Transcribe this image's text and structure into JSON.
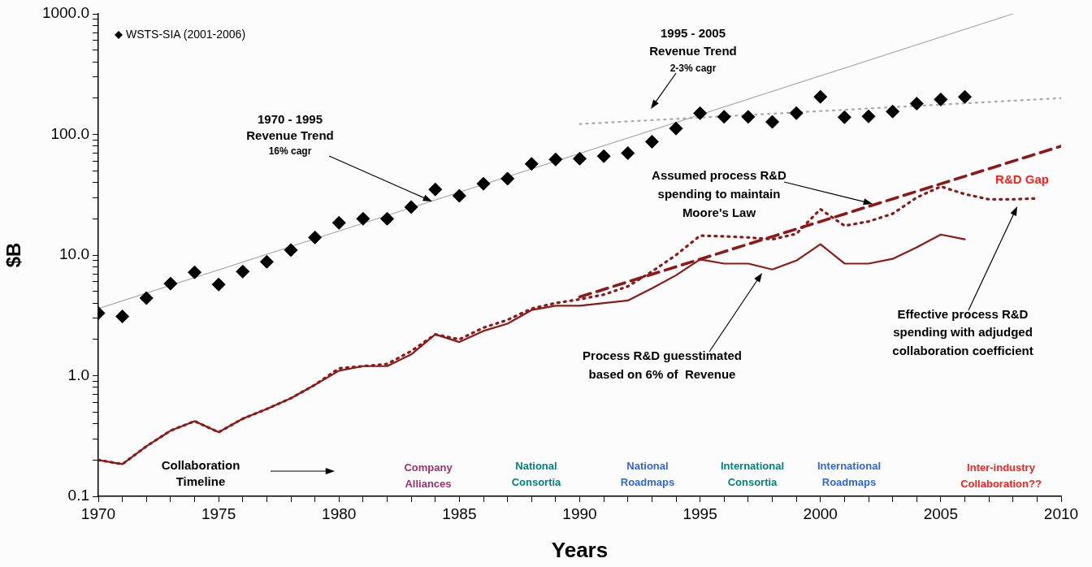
{
  "chart_data": {
    "type": "scatter",
    "xlabel": "Years",
    "ylabel": "$B",
    "log": "y",
    "grid": false,
    "legend": "top left",
    "xlim": [
      1970,
      2010
    ],
    "xticks": [
      1970,
      {
        "value": 1971,
        "label": null
      },
      {
        "value": 1972,
        "label": null
      },
      {
        "value": 1973,
        "label": null
      },
      {
        "value": 1974,
        "label": null
      },
      1975,
      {
        "value": 1976,
        "label": null
      },
      {
        "value": 1977,
        "label": null
      },
      {
        "value": 1978,
        "label": null
      },
      {
        "value": 1979,
        "label": null
      },
      1980,
      {
        "value": 1981,
        "label": null
      },
      {
        "value": 1982,
        "label": null
      },
      {
        "value": 1983,
        "label": null
      },
      {
        "value": 1984,
        "label": null
      },
      1985,
      {
        "value": 1986,
        "label": null
      },
      {
        "value": 1987,
        "label": null
      },
      {
        "value": 1988,
        "label": null
      },
      {
        "value": 1989,
        "label": null
      },
      1990,
      {
        "value": 1991,
        "label": null
      },
      {
        "value": 1992,
        "label": null
      },
      {
        "value": 1993,
        "label": null
      },
      {
        "value": 1994,
        "label": null
      },
      1995,
      {
        "value": 1996,
        "label": null
      },
      {
        "value": 1997,
        "label": null
      },
      {
        "value": 1998,
        "label": null
      },
      {
        "value": 1999,
        "label": null
      },
      2000,
      {
        "value": 2001,
        "label": null
      },
      {
        "value": 2002,
        "label": null
      },
      {
        "value": 2003,
        "label": null
      },
      {
        "value": 2004,
        "label": null
      },
      2005,
      {
        "value": 2006,
        "label": null
      },
      {
        "value": 2007,
        "label": null
      },
      {
        "value": 2008,
        "label": null
      },
      {
        "value": 2009,
        "label": null
      },
      2010
    ],
    "ylim": [
      0.1,
      1000
    ],
    "yticks": [
      0.1,
      {
        "value": 0.2,
        "label": null
      },
      {
        "value": 0.3,
        "label": null
      },
      {
        "value": 0.4,
        "label": null
      },
      {
        "value": 0.5,
        "label": null
      },
      {
        "value": 0.6,
        "label": null
      },
      {
        "value": 0.7,
        "label": null
      },
      {
        "value": 0.8,
        "label": null
      },
      {
        "value": 0.9,
        "label": null
      },
      {
        "value": 1,
        "label": "1.0"
      },
      {
        "value": 2,
        "label": null
      },
      {
        "value": 3,
        "label": null
      },
      {
        "value": 4,
        "label": null
      },
      {
        "value": 5,
        "label": null
      },
      {
        "value": 6,
        "label": null
      },
      {
        "value": 7,
        "label": null
      },
      {
        "value": 8,
        "label": null
      },
      {
        "value": 9,
        "label": null
      },
      {
        "value": 10,
        "label": "10.0"
      },
      {
        "value": 20,
        "label": null
      },
      {
        "value": 30,
        "label": null
      },
      {
        "value": 40,
        "label": null
      },
      {
        "value": 50,
        "label": null
      },
      {
        "value": 60,
        "label": null
      },
      {
        "value": 70,
        "label": null
      },
      {
        "value": 80,
        "label": null
      },
      {
        "value": 90,
        "label": null
      },
      {
        "value": 100,
        "label": "100.0"
      },
      {
        "value": 200,
        "label": null
      },
      {
        "value": 300,
        "label": null
      },
      {
        "value": 400,
        "label": null
      },
      {
        "value": 500,
        "label": null
      },
      {
        "value": 600,
        "label": null
      },
      {
        "value": 700,
        "label": null
      },
      {
        "value": 800,
        "label": null
      },
      {
        "value": 900,
        "label": null
      },
      {
        "value": 1000,
        "label": "1000.0"
      }
    ],
    "series": [
      {
        "type": "line",
        "color": "#a8a8a8",
        "line_style": "solid",
        "x": [
          1970,
          2008
        ],
        "values": [
          3.6,
          1000
        ]
      },
      {
        "type": "line",
        "color": "#a8a8a8",
        "line_style": "dotted",
        "x": [
          1990,
          2010
        ],
        "values": [
          122,
          200
        ]
      },
      {
        "type": "scatter",
        "name": "WSTS-SIA (2001-2006)",
        "color": "#000000",
        "marker": "diamond",
        "x": [
          1970,
          1971,
          1972,
          1973,
          1974,
          1975,
          1976,
          1977,
          1978,
          1979,
          1980,
          1981,
          1982,
          1983,
          1984,
          1985,
          1986,
          1987,
          1988,
          1989,
          1990,
          1991,
          1992,
          1993,
          1994,
          1995,
          1996,
          1997,
          1998,
          1999,
          2000,
          2001,
          2002,
          2003,
          2004,
          2005,
          2006
        ],
        "values": [
          3.3,
          3.1,
          4.4,
          5.8,
          7.2,
          5.7,
          7.3,
          8.8,
          11,
          14,
          18.5,
          20,
          20,
          25,
          35,
          31,
          39,
          43,
          57,
          62,
          63,
          66,
          70,
          87,
          112,
          150,
          140,
          140,
          127,
          150,
          205,
          139,
          141,
          155,
          180,
          195,
          205
        ]
      },
      {
        "type": "line",
        "color": "#8b1a1a",
        "line_style": "dotted",
        "x": [
          1970,
          1971,
          1972,
          1973,
          1974,
          1975,
          1976,
          1977,
          1978,
          1979,
          1980,
          1981,
          1982,
          1983,
          1984,
          1985,
          1986,
          1987,
          1988,
          1989,
          1990,
          1991,
          1992,
          1993,
          1994,
          1995,
          1996,
          1997,
          1998,
          1999,
          2000,
          2001,
          2002,
          2003,
          2004,
          2005,
          2006,
          2007,
          2008,
          2009
        ],
        "values": [
          0.2,
          0.185,
          0.26,
          0.35,
          0.42,
          0.34,
          0.44,
          0.53,
          0.65,
          0.84,
          1.15,
          1.2,
          1.25,
          1.6,
          2.2,
          2,
          2.5,
          2.9,
          3.6,
          4,
          4.3,
          4.7,
          5.5,
          7.3,
          10,
          14.5,
          14.3,
          14,
          13.5,
          15,
          24,
          17.5,
          19,
          22,
          30,
          37,
          32,
          29,
          29,
          29.5
        ]
      },
      {
        "type": "line",
        "color": "#8b1a1a",
        "line_style": "dashed",
        "x": [
          1990,
          2010
        ],
        "values": [
          4.5,
          80
        ]
      },
      {
        "type": "line",
        "color": "#8b1a1a",
        "line_style": "solid",
        "x": [
          1970,
          1971,
          1972,
          1973,
          1974,
          1975,
          1976,
          1977,
          1978,
          1979,
          1980,
          1981,
          1982,
          1983,
          1984,
          1985,
          1986,
          1987,
          1988,
          1989,
          1990,
          1991,
          1992,
          1993,
          1994,
          1995,
          1996,
          1997,
          1998,
          1999,
          2000,
          2001,
          2002,
          2003,
          2004,
          2005,
          2006
        ],
        "values": [
          0.2,
          0.185,
          0.26,
          0.35,
          0.42,
          0.34,
          0.44,
          0.53,
          0.65,
          0.84,
          1.1,
          1.2,
          1.2,
          1.5,
          2.2,
          1.9,
          2.35,
          2.7,
          3.5,
          3.8,
          3.8,
          4,
          4.2,
          5.3,
          6.8,
          9.2,
          8.5,
          8.5,
          7.6,
          9,
          12.3,
          8.5,
          8.5,
          9.3,
          11.6,
          14.8,
          13.5
        ]
      }
    ],
    "annotations": [
      "1970 - 1995\nRevenue Trend\n16% cagr",
      "1995 - 2005\nRevenue Trend\n2-3% cagr",
      "Assumed process R&D\nspending to maintain\nMoore's Law",
      "R&D Gap",
      "Effective process R&D\nspending with adjudged\ncollaboration coefficient",
      "Process R&D guesstimated\nbased on 6% of  Revenue",
      "Collaboration\nTimeline",
      "Company\nAlliances",
      "National\nConsortia",
      "National\nRoadmaps",
      "International\nConsortia",
      "International\nRoadmaps",
      "Inter-industry\nCollaboration??"
    ]
  }
}
